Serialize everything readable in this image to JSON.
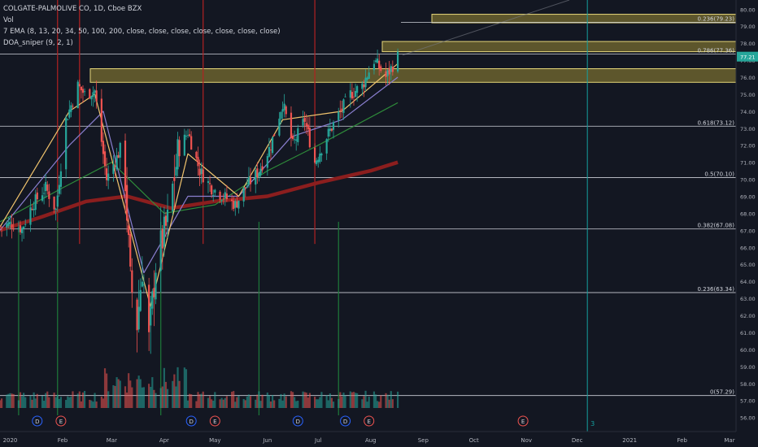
{
  "legend": {
    "symbol": "COLGATE-PALMOLIVE CO, 1D, Cboe BZX",
    "vol": "Vol",
    "ema": "7 EMA (8, 13, 20, 34, 50, 100, 200, close, close, close, close, close, close, close)",
    "doa": "DOA_sniper (9, 2, 1)"
  },
  "colors": {
    "background": "#131722",
    "up": "#26a69a",
    "down": "#ef5350",
    "fib_line": "#d1d4dc",
    "zone_fill": "#b7a33a",
    "zone_edge": "#e6d77a",
    "red_vline": "#b22222",
    "green_vline": "#1e7a3a",
    "teal_vline": "#14a0a0",
    "ema200": "#8b1e1e",
    "ema100": "#2e8b3a",
    "ema_mid": "#8a7fd0",
    "ema_fast": "#f0c36d",
    "price_badge": "#26a69a"
  },
  "chart_data": {
    "type": "candlestick",
    "x_axis_labels": [
      "2020",
      "Feb",
      "Mar",
      "Apr",
      "May",
      "Jun",
      "Jul",
      "Aug",
      "Sep",
      "Oct",
      "Nov",
      "Dec",
      "2021",
      "Feb",
      "Mar"
    ],
    "y_ticks": [
      56.0,
      57.0,
      58.0,
      59.0,
      60.0,
      61.0,
      62.0,
      63.0,
      64.0,
      65.0,
      66.0,
      67.0,
      68.0,
      69.0,
      70.0,
      71.0,
      72.0,
      73.0,
      74.0,
      75.0,
      76.0,
      77.0,
      78.0,
      79.0,
      80.0
    ],
    "ylim": [
      55.6,
      80.3
    ],
    "last_price": "77.21",
    "fib_levels": [
      {
        "label": "0.236(79.23)",
        "value": 79.23
      },
      {
        "label": "0.786(77.36)",
        "value": 77.36
      },
      {
        "label": "0.618(73.12)",
        "value": 73.12
      },
      {
        "label": "0.5(70.10)",
        "value": 70.1
      },
      {
        "label": "0.382(67.08)",
        "value": 67.08
      },
      {
        "label": "0.236(63.34)",
        "value": 63.34
      },
      {
        "label": "0(57.29)",
        "value": 57.29
      }
    ],
    "zones": [
      {
        "low": 75.7,
        "high": 76.5
      },
      {
        "low": 77.5,
        "high": 78.1
      },
      {
        "low": 79.2,
        "high": 79.7
      }
    ],
    "price_series": [
      {
        "date": "2019-12-26",
        "value": 67.2
      },
      {
        "date": "2020-01-02",
        "value": 67.4
      },
      {
        "date": "2020-01-08",
        "value": 67.1
      },
      {
        "date": "2020-01-14",
        "value": 68.5
      },
      {
        "date": "2020-01-22",
        "value": 69.5
      },
      {
        "date": "2020-01-28",
        "value": 68.2
      },
      {
        "date": "2020-02-03",
        "value": 73.5
      },
      {
        "date": "2020-02-10",
        "value": 75.5
      },
      {
        "date": "2020-02-14",
        "value": 75.0
      },
      {
        "date": "2020-02-20",
        "value": 75.2
      },
      {
        "date": "2020-02-27",
        "value": 70.0
      },
      {
        "date": "2020-03-05",
        "value": 71.5
      },
      {
        "date": "2020-03-09",
        "value": 70.0
      },
      {
        "date": "2020-03-12",
        "value": 64.0
      },
      {
        "date": "2020-03-16",
        "value": 61.5
      },
      {
        "date": "2020-03-19",
        "value": 64.8
      },
      {
        "date": "2020-03-23",
        "value": 60.5
      },
      {
        "date": "2020-03-27",
        "value": 65.0
      },
      {
        "date": "2020-04-03",
        "value": 67.5
      },
      {
        "date": "2020-04-09",
        "value": 71.5
      },
      {
        "date": "2020-04-15",
        "value": 72.8
      },
      {
        "date": "2020-04-22",
        "value": 70.5
      },
      {
        "date": "2020-04-29",
        "value": 69.5
      },
      {
        "date": "2020-05-06",
        "value": 69.0
      },
      {
        "date": "2020-05-13",
        "value": 68.5
      },
      {
        "date": "2020-05-19",
        "value": 69.5
      },
      {
        "date": "2020-05-27",
        "value": 70.5
      },
      {
        "date": "2020-06-03",
        "value": 72.0
      },
      {
        "date": "2020-06-10",
        "value": 74.5
      },
      {
        "date": "2020-06-16",
        "value": 72.0
      },
      {
        "date": "2020-06-23",
        "value": 73.5
      },
      {
        "date": "2020-06-29",
        "value": 71.0
      },
      {
        "date": "2020-07-06",
        "value": 72.5
      },
      {
        "date": "2020-07-13",
        "value": 73.8
      },
      {
        "date": "2020-07-20",
        "value": 75.0
      },
      {
        "date": "2020-07-27",
        "value": 75.5
      },
      {
        "date": "2020-08-03",
        "value": 77.0
      },
      {
        "date": "2020-08-10",
        "value": 76.0
      },
      {
        "date": "2020-08-17",
        "value": 77.21
      }
    ],
    "ema200": [
      {
        "date": "2019-12-26",
        "value": 67.0
      },
      {
        "date": "2020-01-20",
        "value": 67.8
      },
      {
        "date": "2020-02-15",
        "value": 68.7
      },
      {
        "date": "2020-03-10",
        "value": 69.0
      },
      {
        "date": "2020-04-05",
        "value": 68.3
      },
      {
        "date": "2020-05-01",
        "value": 68.7
      },
      {
        "date": "2020-06-01",
        "value": 69.0
      },
      {
        "date": "2020-07-01",
        "value": 69.8
      },
      {
        "date": "2020-08-01",
        "value": 70.5
      },
      {
        "date": "2020-08-17",
        "value": 71.0
      }
    ],
    "ema100": [
      {
        "date": "2019-12-26",
        "value": 67.5
      },
      {
        "date": "2020-02-01",
        "value": 69.5
      },
      {
        "date": "2020-03-01",
        "value": 71.0
      },
      {
        "date": "2020-04-01",
        "value": 68.0
      },
      {
        "date": "2020-05-01",
        "value": 68.5
      },
      {
        "date": "2020-06-01",
        "value": 70.5
      },
      {
        "date": "2020-07-01",
        "value": 72.0
      },
      {
        "date": "2020-08-17",
        "value": 74.5
      }
    ],
    "ema_mid": [
      {
        "date": "2019-12-26",
        "value": 67.0
      },
      {
        "date": "2020-02-05",
        "value": 72.0
      },
      {
        "date": "2020-02-25",
        "value": 74.0
      },
      {
        "date": "2020-03-20",
        "value": 64.5
      },
      {
        "date": "2020-04-15",
        "value": 69.0
      },
      {
        "date": "2020-05-15",
        "value": 69.0
      },
      {
        "date": "2020-06-15",
        "value": 72.5
      },
      {
        "date": "2020-07-15",
        "value": 73.5
      },
      {
        "date": "2020-08-17",
        "value": 76.0
      }
    ],
    "ema_fast": [
      {
        "date": "2019-12-26",
        "value": 67.2
      },
      {
        "date": "2020-02-05",
        "value": 74.0
      },
      {
        "date": "2020-02-20",
        "value": 75.0
      },
      {
        "date": "2020-03-24",
        "value": 62.5
      },
      {
        "date": "2020-04-15",
        "value": 71.5
      },
      {
        "date": "2020-05-15",
        "value": 69.0
      },
      {
        "date": "2020-06-10",
        "value": 73.5
      },
      {
        "date": "2020-07-15",
        "value": 74.0
      },
      {
        "date": "2020-08-17",
        "value": 76.8
      }
    ],
    "red_signal_dates": [
      "2020-01-29",
      "2020-02-11",
      "2020-04-24",
      "2020-06-29"
    ],
    "green_signal_dates": [
      "2020-01-06",
      "2020-01-29",
      "2020-03-30",
      "2020-05-27",
      "2020-07-13"
    ],
    "teal_marker": {
      "date": "2020-12-07",
      "label": "3"
    },
    "event_markers": [
      {
        "label": "D",
        "date": "2020-01-17"
      },
      {
        "label": "E",
        "date": "2020-01-31"
      },
      {
        "label": "D",
        "date": "2020-04-17"
      },
      {
        "label": "E",
        "date": "2020-05-01"
      },
      {
        "label": "D",
        "date": "2020-06-19"
      },
      {
        "label": "D",
        "date": "2020-07-17"
      },
      {
        "label": "E",
        "date": "2020-07-31"
      },
      {
        "label": "E",
        "date": "2020-10-30"
      }
    ]
  }
}
